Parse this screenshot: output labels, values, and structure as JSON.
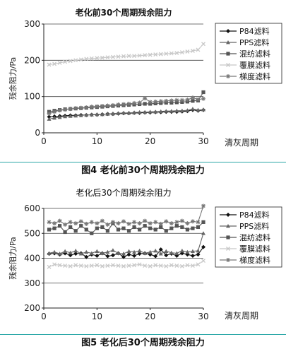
{
  "figures": [
    {
      "caption": "图4  老化前30个周期残余阻力",
      "chart_data": {
        "type": "line",
        "title": "老化前30个周期残余阻力",
        "xlabel": "清灰周期",
        "ylabel": "残余阻力/Pa",
        "xlim": [
          0,
          30
        ],
        "ylim": [
          0,
          300
        ],
        "xticks": [
          0,
          10,
          20,
          30
        ],
        "yticks": [
          0,
          100,
          200,
          300
        ],
        "grid": "horizontal",
        "legend_position": "top-right",
        "x": [
          1,
          2,
          3,
          4,
          5,
          6,
          7,
          8,
          9,
          10,
          11,
          12,
          13,
          14,
          15,
          16,
          17,
          18,
          19,
          20,
          21,
          22,
          23,
          24,
          25,
          26,
          27,
          28,
          29,
          30
        ],
        "series": [
          {
            "name": "P84滤料",
            "marker": "diamond",
            "color": "#111111",
            "values": [
              44,
              45,
              46,
              47,
              48,
              48,
              49,
              49,
              50,
              50,
              51,
              52,
              52,
              53,
              54,
              54,
              55,
              55,
              56,
              56,
              57,
              57,
              58,
              58,
              58,
              59,
              60,
              63,
              61,
              63
            ]
          },
          {
            "name": "PPS滤料",
            "marker": "triangle",
            "color": "#666666",
            "values": [
              38,
              41,
              43,
              45,
              46,
              47,
              48,
              49,
              50,
              51,
              51,
              52,
              53,
              54,
              55,
              55,
              56,
              57,
              57,
              58,
              58,
              59,
              60,
              60,
              61,
              61,
              62,
              66,
              63,
              64
            ]
          },
          {
            "name": "混纺滤料",
            "marker": "square",
            "color": "#555555",
            "values": [
              58,
              61,
              63,
              65,
              66,
              67,
              68,
              69,
              70,
              71,
              72,
              73,
              74,
              75,
              76,
              77,
              78,
              79,
              80,
              80,
              81,
              82,
              83,
              83,
              84,
              85,
              86,
              88,
              89,
              112
            ]
          },
          {
            "name": "覆膜滤料",
            "marker": "x",
            "color": "#c8c8c8",
            "values": [
              188,
              190,
              193,
              196,
              198,
              200,
              202,
              204,
              205,
              206,
              207,
              208,
              209,
              210,
              211,
              212,
              212,
              213,
              214,
              215,
              216,
              217,
              218,
              219,
              220,
              222,
              224,
              226,
              229,
              245
            ]
          },
          {
            "name": "梯度滤料",
            "marker": "star",
            "color": "#777777",
            "values": [
              53,
              58,
              62,
              64,
              66,
              68,
              69,
              70,
              72,
              73,
              74,
              75,
              76,
              78,
              79,
              80,
              82,
              83,
              95,
              85,
              86,
              87,
              88,
              89,
              90,
              90,
              91,
              97,
              92,
              94
            ]
          }
        ]
      }
    },
    {
      "caption": "图5  老化后30个周期残余阻力",
      "chart_data": {
        "type": "line",
        "title": "老化后30个周期残余阻力",
        "xlabel": "清灰周期",
        "ylabel": "残余阻力/Pa",
        "xlim": [
          0,
          30
        ],
        "ylim": [
          200,
          600
        ],
        "xticks": [
          0,
          10,
          20,
          30
        ],
        "yticks": [
          200,
          300,
          400,
          500,
          600
        ],
        "grid": "horizontal",
        "legend_position": "top-right",
        "x": [
          1,
          2,
          3,
          4,
          5,
          6,
          7,
          8,
          9,
          10,
          11,
          12,
          13,
          14,
          15,
          16,
          17,
          18,
          19,
          20,
          21,
          22,
          23,
          24,
          25,
          26,
          27,
          28,
          29,
          30
        ],
        "series": [
          {
            "name": "P84滤料",
            "marker": "diamond",
            "color": "#111111",
            "values": [
              418,
              420,
              415,
              420,
              412,
              418,
              420,
              405,
              415,
              410,
              420,
              408,
              412,
              420,
              405,
              415,
              410,
              418,
              420,
              415,
              408,
              435,
              412,
              418,
              410,
              420,
              415,
              410,
              415,
              445
            ]
          },
          {
            "name": "PPS滤料",
            "marker": "triangle",
            "color": "#666666",
            "values": [
              420,
              425,
              418,
              428,
              422,
              430,
              418,
              425,
              420,
              428,
              420,
              425,
              432,
              420,
              418,
              428,
              425,
              430,
              420,
              425,
              430,
              418,
              428,
              422,
              420,
              430,
              425,
              428,
              430,
              500
            ]
          },
          {
            "name": "混纺滤料",
            "marker": "square",
            "color": "#555555",
            "values": [
              515,
              520,
              530,
              505,
              525,
              510,
              530,
              515,
              500,
              520,
              525,
              510,
              540,
              515,
              520,
              510,
              525,
              515,
              530,
              520,
              515,
              525,
              510,
              520,
              530,
              525,
              515,
              520,
              525,
              545
            ]
          },
          {
            "name": "覆膜滤料",
            "marker": "x",
            "color": "#c8c8c8",
            "values": [
              365,
              375,
              372,
              370,
              368,
              372,
              370,
              368,
              370,
              372,
              368,
              370,
              372,
              370,
              368,
              370,
              372,
              375,
              370,
              368,
              372,
              370,
              368,
              372,
              370,
              368,
              372,
              370,
              375,
              390
            ]
          },
          {
            "name": "梯度滤料",
            "marker": "star",
            "color": "#777777",
            "values": [
              545,
              540,
              550,
              535,
              545,
              540,
              548,
              538,
              545,
              540,
              550,
              535,
              545,
              540,
              548,
              538,
              545,
              540,
              550,
              540,
              545,
              538,
              548,
              540,
              545,
              550,
              540,
              548,
              545,
              610
            ]
          }
        ]
      }
    }
  ]
}
